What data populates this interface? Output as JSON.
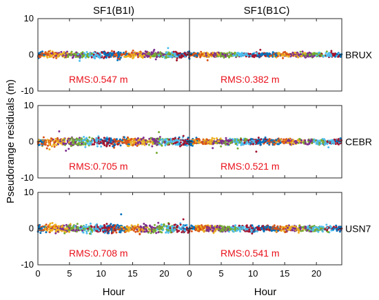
{
  "chart_data": {
    "type": "scatter",
    "column_titles": [
      "SF1(B1I)",
      "SF1(B1C)"
    ],
    "ylabel": "Pseudorange residuals (m)",
    "xlabel": "Hour",
    "xlim": [
      0,
      24
    ],
    "ylim": [
      -10,
      10
    ],
    "xticks": [
      0,
      5,
      10,
      15,
      20
    ],
    "yticks": [
      10,
      0,
      -10
    ],
    "colors": [
      "#0072bd",
      "#d95319",
      "#edb120",
      "#7e2f8e",
      "#77ac30",
      "#4dbeee",
      "#a2142f"
    ],
    "rows": [
      {
        "station": "BRUX",
        "panels": [
          {
            "rms_label": "RMS:0.547 m",
            "rms": 0.547
          },
          {
            "rms_label": "RMS:0.382 m",
            "rms": 0.382
          }
        ]
      },
      {
        "station": "CEBR",
        "panels": [
          {
            "rms_label": "RMS:0.705 m",
            "rms": 0.705
          },
          {
            "rms_label": "RMS:0.521 m",
            "rms": 0.521
          }
        ]
      },
      {
        "station": "USN7",
        "panels": [
          {
            "rms_label": "RMS:0.708 m",
            "rms": 0.708
          },
          {
            "rms_label": "RMS:0.541 m",
            "rms": 0.541
          }
        ]
      }
    ]
  }
}
